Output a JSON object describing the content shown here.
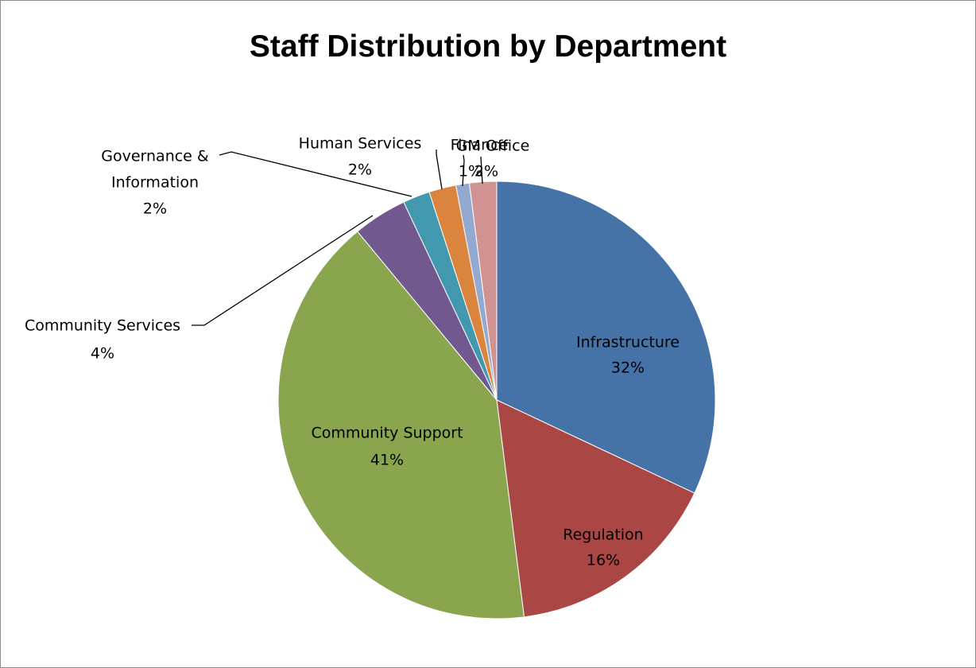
{
  "chart_data": {
    "type": "pie",
    "title": "Staff Distribution by Department",
    "legend": "none",
    "slices": [
      {
        "label": "Infrastructure",
        "value": 32,
        "pct_label": "32%",
        "color": "#4572A7"
      },
      {
        "label": "Regulation",
        "value": 16,
        "pct_label": "16%",
        "color": "#AA4643"
      },
      {
        "label": "Community Support",
        "value": 41,
        "pct_label": "41%",
        "color": "#89A54E"
      },
      {
        "label": "Community Services",
        "value": 4,
        "pct_label": "4%",
        "color": "#71588F"
      },
      {
        "label": "Governance & Information",
        "value": 2,
        "pct_label": "2%",
        "color": "#4198AF"
      },
      {
        "label": "Human Services",
        "value": 2,
        "pct_label": "2%",
        "color": "#DB843D"
      },
      {
        "label": "Finance",
        "value": 1,
        "pct_label": "1%",
        "color": "#93A9CF"
      },
      {
        "label": "GM Office",
        "value": 2,
        "pct_label": "2%",
        "color": "#D19392"
      }
    ]
  }
}
